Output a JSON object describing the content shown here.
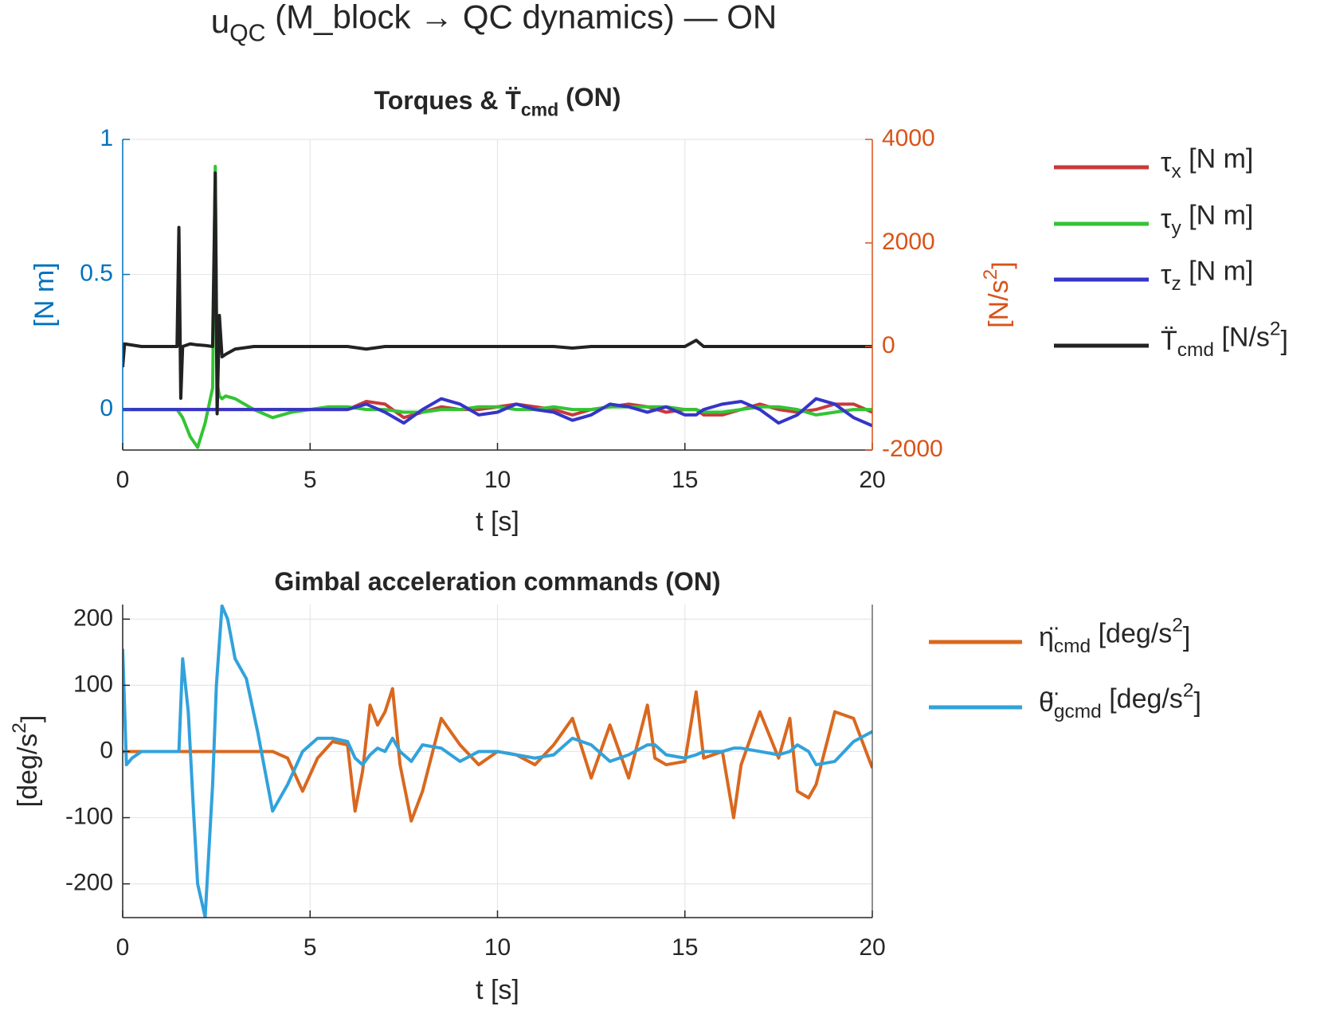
{
  "title": "u_{QC} (M_block → QC dynamics) — ON",
  "chart_data": [
    {
      "type": "line",
      "title": "Torques & T̈_{cmd} (ON)",
      "xlabel": "t [s]",
      "ylabel": "[N m]",
      "y2label": "[N/s^{2}]",
      "ycolor": "#0072bd",
      "y2color": "#d95319",
      "grid": true,
      "legend": "outside right",
      "xlim": [
        0,
        20
      ],
      "xticks": [
        0,
        5,
        10,
        15,
        20
      ],
      "ylim": [
        -0.15,
        1
      ],
      "yticks": [
        0,
        0.5,
        1
      ],
      "y2lim": [
        -2000,
        4000
      ],
      "y2ticks": [
        -2000,
        0,
        2000,
        4000
      ],
      "x": [
        0,
        0.05,
        0.5,
        1.0,
        1.45,
        1.5,
        1.55,
        1.6,
        1.8,
        2.0,
        2.2,
        2.4,
        2.47,
        2.52,
        2.58,
        2.65,
        2.75,
        3.0,
        3.5,
        4.0,
        4.5,
        5,
        5.5,
        6,
        6.5,
        7,
        7.5,
        8,
        8.5,
        9,
        9.5,
        10,
        10.5,
        11,
        11.5,
        12,
        12.5,
        13,
        13.5,
        14,
        14.5,
        15,
        15.3,
        15.5,
        16,
        16.5,
        17,
        17.5,
        18,
        18.5,
        19,
        19.5,
        20
      ],
      "series": [
        {
          "name": "τ_{x} [N m]",
          "color": "#c8393b",
          "values": [
            0,
            0,
            0,
            0,
            0,
            0,
            0,
            0,
            0,
            0,
            0,
            0,
            0,
            0,
            0,
            0,
            0,
            0,
            0,
            0,
            0,
            0,
            0,
            0.0,
            0.03,
            0.02,
            -0.03,
            -0.01,
            0.01,
            0.0,
            0.0,
            0.01,
            0.02,
            0.01,
            0.0,
            -0.02,
            0.0,
            0.01,
            0.02,
            0.01,
            -0.01,
            0.0,
            0.0,
            -0.02,
            -0.02,
            0.0,
            0.02,
            0.0,
            -0.01,
            0.0,
            0.02,
            0.02,
            -0.01
          ]
        },
        {
          "name": "τ_{y} [N m]",
          "color": "#33c433",
          "values": [
            0,
            0,
            0,
            0,
            0,
            -0.01,
            -0.02,
            -0.03,
            -0.1,
            -0.14,
            -0.05,
            0.08,
            0.9,
            0.1,
            0.05,
            0.04,
            0.05,
            0.04,
            0.0,
            -0.03,
            -0.01,
            0.0,
            0.01,
            0.01,
            0.0,
            0.0,
            -0.01,
            -0.01,
            0.0,
            0.0,
            0.01,
            0.01,
            0.0,
            0.0,
            0.01,
            0.0,
            0.0,
            0.01,
            0.01,
            0.01,
            0.01,
            0.0,
            0.0,
            -0.01,
            -0.01,
            0.0,
            0.01,
            0.01,
            0.0,
            -0.02,
            -0.01,
            0.0,
            0.0
          ]
        },
        {
          "name": "τ_{z} [N m]",
          "color": "#3535c8",
          "values": [
            0,
            0,
            0,
            0,
            0,
            0,
            0,
            0,
            0,
            0,
            0,
            0,
            0,
            0,
            0,
            0,
            0,
            0,
            0,
            0,
            0,
            0,
            0,
            0.0,
            0.02,
            -0.01,
            -0.05,
            0.0,
            0.04,
            0.02,
            -0.02,
            -0.01,
            0.02,
            0.0,
            -0.01,
            -0.04,
            -0.02,
            0.02,
            0.01,
            -0.01,
            0.01,
            -0.02,
            -0.02,
            0.0,
            0.02,
            0.03,
            0.0,
            -0.05,
            -0.02,
            0.04,
            0.02,
            -0.03,
            -0.06
          ]
        },
        {
          "name": "T̈_{cmd} [N/s^{2}]",
          "color": "#222222",
          "axis": "y2",
          "values": [
            -400,
            50,
            0,
            0,
            0,
            2300,
            -1000,
            0,
            50,
            30,
            20,
            0,
            3350,
            -1300,
            600,
            -200,
            -150,
            -50,
            0,
            0,
            0,
            0,
            0,
            0,
            -50,
            0,
            0,
            0,
            0,
            0,
            0,
            0,
            0,
            0,
            0,
            -30,
            0,
            0,
            0,
            0,
            0,
            0,
            120,
            0,
            0,
            0,
            0,
            0,
            0,
            0,
            0,
            0,
            0
          ]
        }
      ]
    },
    {
      "type": "line",
      "title": "Gimbal acceleration commands (ON)",
      "xlabel": "t [s]",
      "ylabel": "[deg/s^{2}]",
      "grid": true,
      "legend": "outside right",
      "xlim": [
        0,
        20
      ],
      "xticks": [
        0,
        5,
        10,
        15,
        20
      ],
      "ylim": [
        -251,
        222
      ],
      "yticks": [
        -200,
        -100,
        0,
        100,
        200
      ],
      "x": [
        0,
        0.1,
        0.25,
        0.5,
        1.0,
        1.5,
        1.6,
        1.75,
        1.9,
        2.0,
        2.2,
        2.4,
        2.5,
        2.65,
        2.8,
        3.0,
        3.3,
        3.6,
        4.0,
        4.4,
        4.8,
        5.2,
        5.6,
        6.0,
        6.2,
        6.4,
        6.6,
        6.8,
        7.0,
        7.2,
        7.4,
        7.7,
        8.0,
        8.5,
        9.0,
        9.5,
        10,
        10.5,
        11,
        11.5,
        12,
        12.5,
        13,
        13.5,
        14,
        14.2,
        14.5,
        15,
        15.3,
        15.5,
        16,
        16.3,
        16.5,
        17,
        17.5,
        17.8,
        18,
        18.3,
        18.5,
        19,
        19.5,
        20
      ],
      "series": [
        {
          "name": "η̈_{cmd} [deg/s^{2}]",
          "color": "#d9681f",
          "values": [
            0,
            0,
            0,
            0,
            0,
            0,
            0,
            0,
            0,
            0,
            0,
            0,
            0,
            0,
            0,
            0,
            0,
            0,
            0,
            -10,
            -60,
            -10,
            15,
            10,
            -90,
            -30,
            70,
            40,
            60,
            95,
            -20,
            -105,
            -60,
            50,
            10,
            -20,
            0,
            -5,
            -20,
            10,
            50,
            -40,
            40,
            -40,
            70,
            -10,
            -20,
            -15,
            90,
            -10,
            0,
            -100,
            -20,
            60,
            -10,
            50,
            -60,
            -70,
            -50,
            60,
            50,
            -25
          ]
        },
        {
          "name": "θ̈_{gcmd} [deg/s^{2}]",
          "color": "#31a2dc",
          "values": [
            155,
            -20,
            -10,
            0,
            0,
            0,
            140,
            60,
            -100,
            -200,
            -250,
            -50,
            100,
            220,
            200,
            140,
            110,
            30,
            -90,
            -50,
            0,
            20,
            20,
            15,
            -10,
            -20,
            -5,
            5,
            0,
            20,
            0,
            -15,
            10,
            5,
            -15,
            0,
            0,
            -5,
            -10,
            -5,
            20,
            10,
            -15,
            -5,
            10,
            10,
            -5,
            -10,
            -5,
            0,
            0,
            5,
            5,
            0,
            -5,
            0,
            10,
            0,
            -20,
            -15,
            15,
            30
          ]
        }
      ]
    }
  ]
}
